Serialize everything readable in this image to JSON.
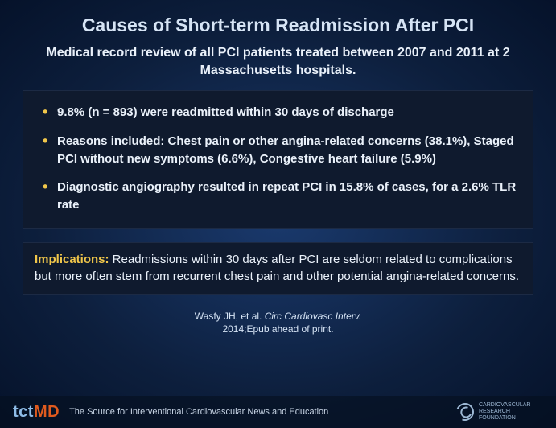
{
  "title": "Causes of Short-term Readmission After PCI",
  "subtitle": "Medical record review of all PCI patients treated between 2007 and 2011 at 2 Massachusetts hospitals.",
  "bullets": [
    "9.8% (n = 893) were readmitted within 30 days of discharge",
    "Reasons included: Chest pain or other angina-related concerns (38.1%), Staged PCI without new symptoms (6.6%), Congestive heart failure (5.9%)",
    "Diagnostic angiography resulted in repeat PCI in 15.8% of cases, for a 2.6% TLR rate"
  ],
  "implications": {
    "label": "Implications:",
    "text": " Readmissions within 30 days after PCI are seldom related to complications but more often stem from recurrent chest pain and other potential angina-related concerns."
  },
  "citation": {
    "authors": "Wasfy JH, et al. ",
    "source": "Circ Cardiovasc Interv.",
    "rest": " 2014;Epub ahead of print."
  },
  "footer": {
    "logo_tct": "tct",
    "logo_md": "MD",
    "tagline": "The Source for Interventional Cardiovascular News and Education",
    "crf_text": "CARDIOVASCULAR RESEARCH FOUNDATION"
  },
  "colors": {
    "accent_yellow": "#f0c64a",
    "accent_orange": "#e05a1e",
    "bg_dark": "#0f1a2e",
    "text_light": "#eaf1fa"
  }
}
